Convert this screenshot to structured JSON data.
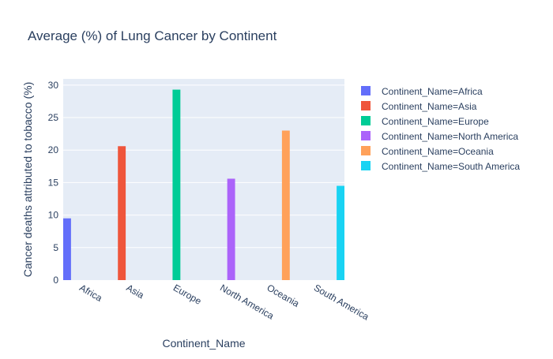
{
  "chart_data": {
    "type": "bar",
    "title": "Average (%) of Lung Cancer by Continent",
    "xlabel": "Continent_Name",
    "ylabel": "Cancer deaths attributed to tobacco (%)",
    "ylim": [
      0,
      30.95
    ],
    "yticks": [
      0,
      5,
      10,
      15,
      20,
      25,
      30
    ],
    "grid": true,
    "legend_position": "right",
    "categories": [
      "Africa",
      "Asia",
      "Europe",
      "North America",
      "Oceania",
      "South America"
    ],
    "series": [
      {
        "name": "Continent_Name=Africa",
        "color": "#636efa",
        "values": [
          9.5,
          null,
          null,
          null,
          null,
          null
        ]
      },
      {
        "name": "Continent_Name=Asia",
        "color": "#EF553B",
        "values": [
          null,
          20.6,
          null,
          null,
          null,
          null
        ]
      },
      {
        "name": "Continent_Name=Europe",
        "color": "#00cc96",
        "values": [
          null,
          null,
          29.3,
          null,
          null,
          null
        ]
      },
      {
        "name": "Continent_Name=North America",
        "color": "#ab63fa",
        "values": [
          null,
          null,
          null,
          15.6,
          null,
          null
        ]
      },
      {
        "name": "Continent_Name=Oceania",
        "color": "#FFA15A",
        "values": [
          null,
          null,
          null,
          null,
          23.0,
          null
        ]
      },
      {
        "name": "Continent_Name=South America",
        "color": "#19d3f3",
        "values": [
          null,
          null,
          null,
          null,
          null,
          14.5
        ]
      }
    ]
  }
}
